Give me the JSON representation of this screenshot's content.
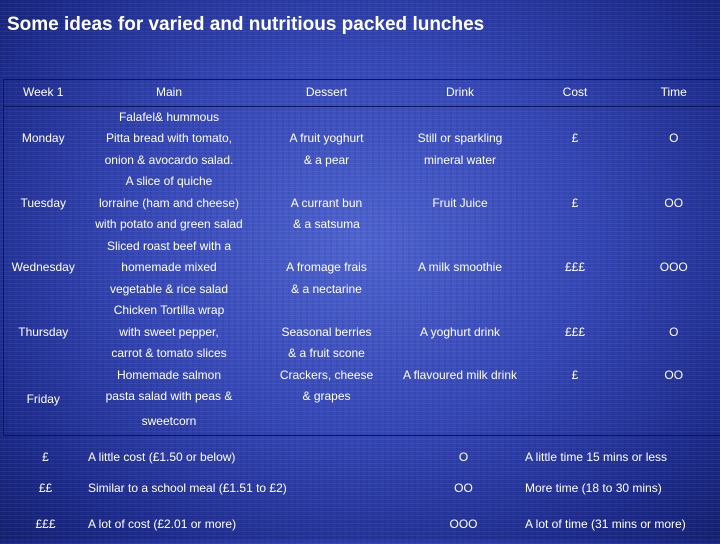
{
  "title": "Some ideas for varied and nutritious packed lunches",
  "headers": {
    "week": "Week 1",
    "main": "Main",
    "dessert": "Dessert",
    "drink": "Drink",
    "cost": "Cost",
    "time": "Time"
  },
  "days": [
    {
      "day": "Monday",
      "main": [
        "Falafel& hummous",
        "Pitta bread with tomato,",
        "onion & avocardo salad."
      ],
      "dessert": [
        "A fruit yoghurt",
        "& a pear"
      ],
      "drink": [
        "Still or sparkling",
        "mineral water"
      ],
      "cost": "£",
      "time": "O"
    },
    {
      "day": "Tuesday",
      "main": [
        "A slice of quiche",
        "lorraine (ham and cheese)",
        "with potato and green salad"
      ],
      "dessert": [
        "A currant bun",
        "& a satsuma"
      ],
      "drink": [
        "Fruit Juice"
      ],
      "cost": "£",
      "time": "OO"
    },
    {
      "day": "Wednesday",
      "main": [
        "Sliced roast beef with a",
        "homemade mixed",
        "vegetable & rice salad"
      ],
      "dessert": [
        "A fromage frais",
        "& a nectarine"
      ],
      "drink": [
        "A milk smoothie"
      ],
      "cost": "£££",
      "time": "OOO"
    },
    {
      "day": "Thursday",
      "main": [
        "Chicken Tortilla wrap",
        "with sweet pepper,",
        "carrot & tomato slices"
      ],
      "dessert": [
        "Seasonal berries",
        "& a fruit scone"
      ],
      "drink": [
        "A yoghurt drink"
      ],
      "cost": "£££",
      "time": "O"
    },
    {
      "day": "Friday",
      "main": [
        "Homemade salmon",
        "pasta salad with peas &",
        "sweetcorn"
      ],
      "dessert": [
        "Crackers, cheese",
        "& grapes"
      ],
      "drink": [
        "A flavoured milk drink"
      ],
      "cost": "£",
      "time": "OO"
    }
  ],
  "legend": [
    {
      "cost_symbol": "£",
      "cost_text": "A little cost (£1.50 or below)",
      "time_symbol": "O",
      "time_text": "A little time 15 mins or less"
    },
    {
      "cost_symbol": "££",
      "cost_text": "Similar to a school meal (£1.51 to £2)",
      "time_symbol": "OO",
      "time_text": "More time (18 to 30 mins)"
    },
    {
      "cost_symbol": "£££",
      "cost_text": "A lot of cost (£2.01 or more)",
      "time_symbol": "OOO",
      "time_text": "A lot of time (31 mins or more)"
    }
  ]
}
